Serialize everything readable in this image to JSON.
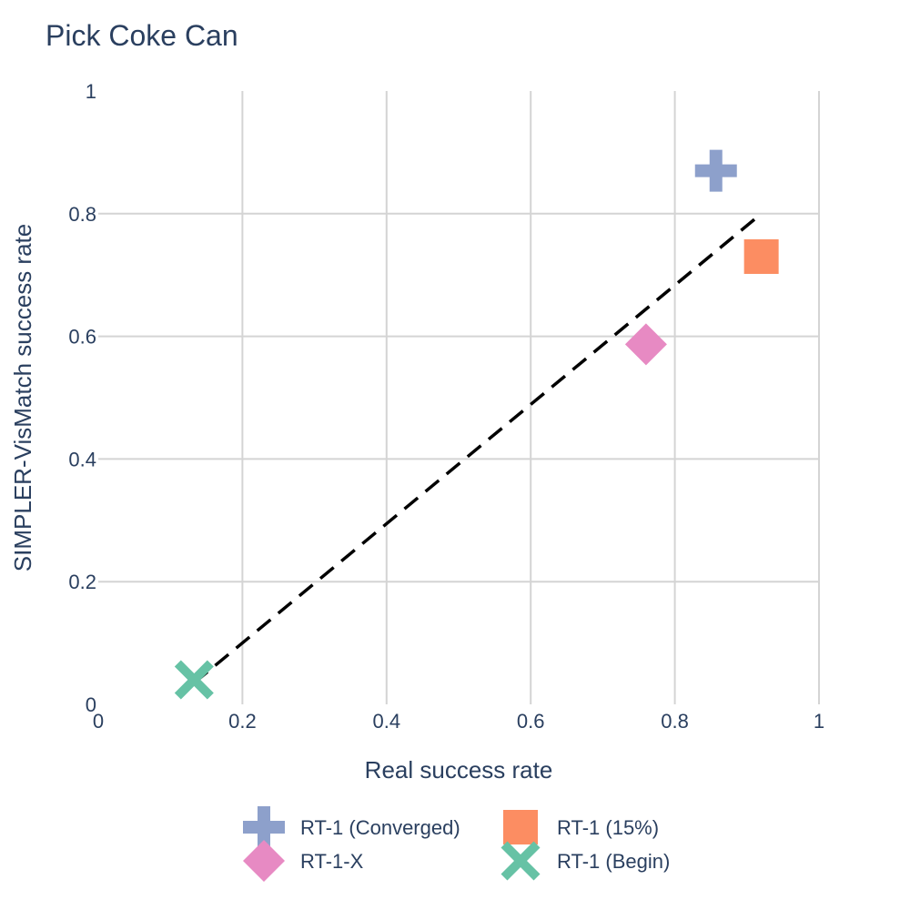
{
  "chart_data": {
    "type": "scatter",
    "title": "Pick Coke Can",
    "xlabel": "Real success rate",
    "ylabel": "SIMPLER-VisMatch success rate",
    "xlim": [
      0,
      1
    ],
    "ylim": [
      0,
      1
    ],
    "grid": true,
    "legend_position": "bottom",
    "x_ticks": [
      {
        "value": 0,
        "label": "0"
      },
      {
        "value": 0.2,
        "label": "0.2"
      },
      {
        "value": 0.4,
        "label": "0.4"
      },
      {
        "value": 0.6,
        "label": "0.6"
      },
      {
        "value": 0.8,
        "label": "0.8"
      },
      {
        "value": 1,
        "label": "1"
      }
    ],
    "y_ticks": [
      {
        "value": 0,
        "label": "0"
      },
      {
        "value": 0.2,
        "label": "0.2"
      },
      {
        "value": 0.4,
        "label": "0.4"
      },
      {
        "value": 0.6,
        "label": "0.6"
      },
      {
        "value": 0.8,
        "label": "0.8"
      },
      {
        "value": 1,
        "label": "1"
      }
    ],
    "series": [
      {
        "name": "RT-1 (Converged)",
        "x": 0.857,
        "y": 0.87,
        "marker": "cross",
        "color": "#8da0cb"
      },
      {
        "name": "RT-1 (15%)",
        "x": 0.92,
        "y": 0.73,
        "marker": "square",
        "color": "#fc8d62"
      },
      {
        "name": "RT-1-X",
        "x": 0.76,
        "y": 0.587,
        "marker": "diamond",
        "color": "#e78ac3"
      },
      {
        "name": "RT-1 (Begin)",
        "x": 0.133,
        "y": 0.04,
        "marker": "x",
        "color": "#66c2a5"
      }
    ],
    "fit_line": {
      "style": "dashed",
      "color": "#000000",
      "x": [
        0.133,
        0.92
      ],
      "y": [
        0.035,
        0.8
      ]
    }
  }
}
